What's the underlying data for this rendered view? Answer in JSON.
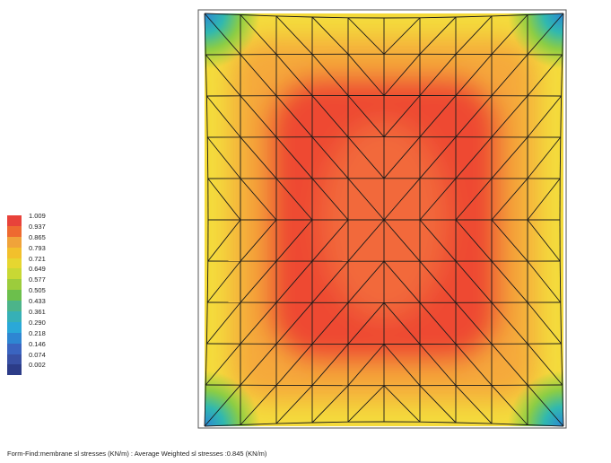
{
  "legend": {
    "labels": [
      "1.009",
      "0.937",
      "0.865",
      "0.793",
      "0.721",
      "0.649",
      "0.577",
      "0.505",
      "0.433",
      "0.361",
      "0.290",
      "0.218",
      "0.146",
      "0.074",
      "0.002"
    ],
    "colors": [
      "#e8423a",
      "#ee6a30",
      "#f0a33a",
      "#f2c02c",
      "#e6d630",
      "#c8d834",
      "#9ccc3c",
      "#6cbf4c",
      "#4cb48a",
      "#36b0b6",
      "#2aa8d8",
      "#2e86d2",
      "#3a64c0",
      "#3850a4",
      "#2c3c88"
    ]
  },
  "caption": "Form-Find:membrane sl stresses (KN/m) : Average Weighted sl stresses :0.845 (KN/m)",
  "membrane": {
    "grid_divisions": 10,
    "stress_colors": {
      "high": "#ee4a32",
      "mid": "#f5a93a",
      "low_mid": "#f4dc3c",
      "low": "#8ccd44",
      "corner": "#2a86d4"
    }
  }
}
